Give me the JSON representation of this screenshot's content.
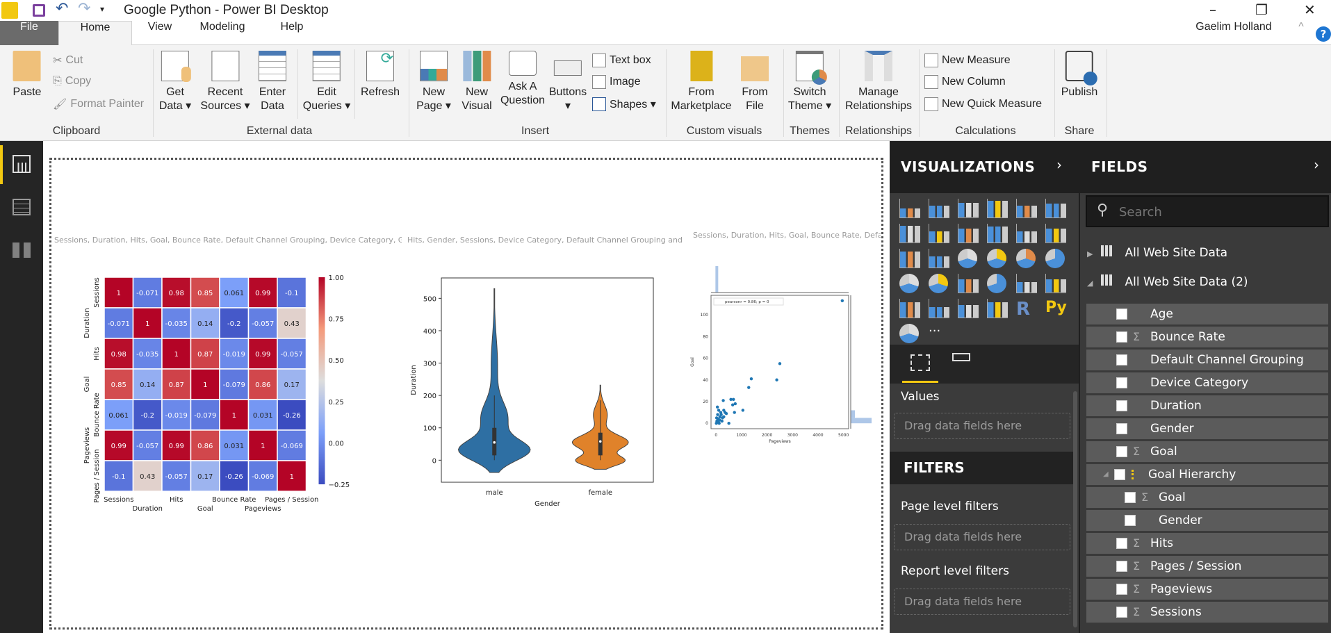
{
  "window": {
    "title": "Google Python - Power BI Desktop",
    "user": "Gaelim Holland",
    "minimize": "–",
    "maximize": "❐",
    "close": "✕",
    "help": "?",
    "collapse": "^"
  },
  "tabs": [
    {
      "label": "File"
    },
    {
      "label": "Home"
    },
    {
      "label": "View"
    },
    {
      "label": "Modeling"
    },
    {
      "label": "Help"
    }
  ],
  "ribbon": {
    "clipboard": {
      "label": "Clipboard",
      "paste": "Paste",
      "cut": "Cut",
      "copy": "Copy",
      "format_painter": "Format Painter"
    },
    "external": {
      "label": "External data",
      "get_data": [
        "Get",
        "Data ▾"
      ],
      "recent_sources": [
        "Recent",
        "Sources ▾"
      ],
      "enter_data": [
        "Enter",
        "Data"
      ],
      "edit_queries": [
        "Edit",
        "Queries ▾"
      ],
      "refresh": "Refresh"
    },
    "insert": {
      "label": "Insert",
      "new_page": [
        "New",
        "Page ▾"
      ],
      "new_visual": [
        "New",
        "Visual"
      ],
      "ask": [
        "Ask A",
        "Question"
      ],
      "buttons": [
        "Buttons",
        "▾"
      ],
      "text_box": "Text box",
      "image": "Image",
      "shapes": "Shapes ▾"
    },
    "custom": {
      "label": "Custom visuals",
      "marketplace": [
        "From",
        "Marketplace"
      ],
      "file": [
        "From",
        "File"
      ]
    },
    "themes": {
      "label": "Themes",
      "switch": [
        "Switch",
        "Theme ▾"
      ]
    },
    "relationships": {
      "label": "Relationships",
      "manage": [
        "Manage",
        "Relationships"
      ]
    },
    "calculations": {
      "label": "Calculations",
      "new_measure": "New Measure",
      "new_column": "New Column",
      "new_quick_measure": "New Quick Measure"
    },
    "share": {
      "label": "Share",
      "publish": "Publish"
    }
  },
  "visuals": {
    "heatmap_title": "Sessions, Duration, Hits, Goal, Bounce Rate, Default Channel Grouping, Device Category, Gender, Age, P...",
    "violin_title": "Hits, Gender, Sessions, Device Category, Default Channel Grouping and Durati...",
    "scatter_title": "Sessions, Duration, Hits, Goal, Bounce Rate, Default ..."
  },
  "chart_data": [
    {
      "type": "heatmap",
      "labels": [
        "Sessions",
        "Duration",
        "Hits",
        "Goal",
        "Bounce Rate",
        "Pageviews",
        "Pages / Session"
      ],
      "values": [
        [
          1,
          -0.071,
          0.98,
          0.85,
          0.061,
          0.99,
          -0.1
        ],
        [
          -0.071,
          1,
          -0.035,
          0.14,
          -0.2,
          -0.057,
          0.43
        ],
        [
          0.98,
          -0.035,
          1,
          0.87,
          -0.019,
          0.99,
          -0.057
        ],
        [
          0.85,
          0.14,
          0.87,
          1,
          -0.079,
          0.86,
          0.17
        ],
        [
          0.061,
          -0.2,
          -0.019,
          -0.079,
          1,
          0.031,
          -0.26
        ],
        [
          0.99,
          -0.057,
          0.99,
          0.86,
          0.031,
          1,
          -0.069
        ],
        [
          -0.1,
          0.43,
          -0.057,
          0.17,
          -0.26,
          -0.069,
          1
        ]
      ],
      "colorbar": {
        "range": [
          -0.25,
          1.0
        ],
        "ticks": [
          "1.00",
          "0.75",
          "0.50",
          "0.25",
          "0.00",
          "−0.25"
        ],
        "colormap": "coolwarm"
      }
    },
    {
      "type": "violin",
      "xlabel": "Gender",
      "ylabel": "Duration",
      "categories": [
        "male",
        "female"
      ],
      "colors": [
        "#2e6fa3",
        "#e0822a"
      ],
      "yticks": [
        "0",
        "100",
        "200",
        "300",
        "400",
        "500"
      ],
      "ylim": [
        -68,
        563
      ],
      "series": [
        {
          "min": -38,
          "max": 530,
          "median": 55,
          "q1": 15,
          "q3": 100
        },
        {
          "min": -28,
          "max": 232,
          "median": 58,
          "q1": 15,
          "q3": 85
        }
      ]
    },
    {
      "type": "scatter",
      "xlabel": "Pageviews",
      "ylabel": "Goal",
      "legend": "pearsonr = 0.86; p = 0",
      "xlim": [
        -200,
        5200
      ],
      "ylim": [
        -5,
        118
      ],
      "xticks": [
        "0",
        "1000",
        "2000",
        "3000",
        "4000",
        "5000"
      ],
      "yticks": [
        "0",
        "20",
        "40",
        "60",
        "80",
        "100"
      ],
      "color": "#1f77b4",
      "points": [
        [
          4950,
          113
        ],
        [
          2500,
          55
        ],
        [
          2380,
          40
        ],
        [
          1380,
          41
        ],
        [
          1280,
          33
        ],
        [
          1050,
          12
        ],
        [
          720,
          10
        ],
        [
          750,
          18
        ],
        [
          650,
          17
        ],
        [
          580,
          22
        ],
        [
          680,
          22
        ],
        [
          280,
          21
        ],
        [
          500,
          0
        ],
        [
          50,
          15
        ],
        [
          100,
          12
        ],
        [
          300,
          12
        ],
        [
          350,
          10
        ],
        [
          200,
          8
        ],
        [
          150,
          6
        ],
        [
          80,
          4
        ],
        [
          30,
          2
        ],
        [
          10,
          0
        ],
        [
          120,
          0
        ],
        [
          250,
          5
        ],
        [
          180,
          10
        ],
        [
          60,
          8
        ],
        [
          20,
          5
        ],
        [
          90,
          1
        ],
        [
          300,
          6
        ],
        [
          400,
          9
        ],
        [
          230,
          2
        ],
        [
          140,
          3
        ]
      ]
    }
  ],
  "visualizations": {
    "title": "VISUALIZATIONS",
    "values_label": "Values",
    "drag": "Drag data fields here",
    "filters_title": "FILTERS",
    "page_filters": "Page level filters",
    "report_filters": "Report level filters",
    "more": "···"
  },
  "fields": {
    "title": "FIELDS",
    "search_placeholder": "Search",
    "tables": [
      {
        "name": "All Web Site Data",
        "expanded": false
      },
      {
        "name": "All Web Site Data (2)",
        "expanded": true
      }
    ],
    "items": [
      {
        "name": "Age",
        "sigma": false,
        "level": 0
      },
      {
        "name": "Bounce Rate",
        "sigma": true,
        "level": 0
      },
      {
        "name": "Default Channel Grouping",
        "sigma": false,
        "level": 0
      },
      {
        "name": "Device Category",
        "sigma": false,
        "level": 0
      },
      {
        "name": "Duration",
        "sigma": false,
        "level": 0
      },
      {
        "name": "Gender",
        "sigma": false,
        "level": 0
      },
      {
        "name": "Goal",
        "sigma": true,
        "level": 0
      },
      {
        "name": "Goal Hierarchy",
        "sigma": false,
        "level": 0,
        "hierarchy": true
      },
      {
        "name": "Goal",
        "sigma": true,
        "level": 1
      },
      {
        "name": "Gender",
        "sigma": false,
        "level": 1
      },
      {
        "name": "Hits",
        "sigma": true,
        "level": 0
      },
      {
        "name": "Pages / Session",
        "sigma": true,
        "level": 0
      },
      {
        "name": "Pageviews",
        "sigma": true,
        "level": 0
      },
      {
        "name": "Sessions",
        "sigma": true,
        "level": 0
      }
    ]
  }
}
